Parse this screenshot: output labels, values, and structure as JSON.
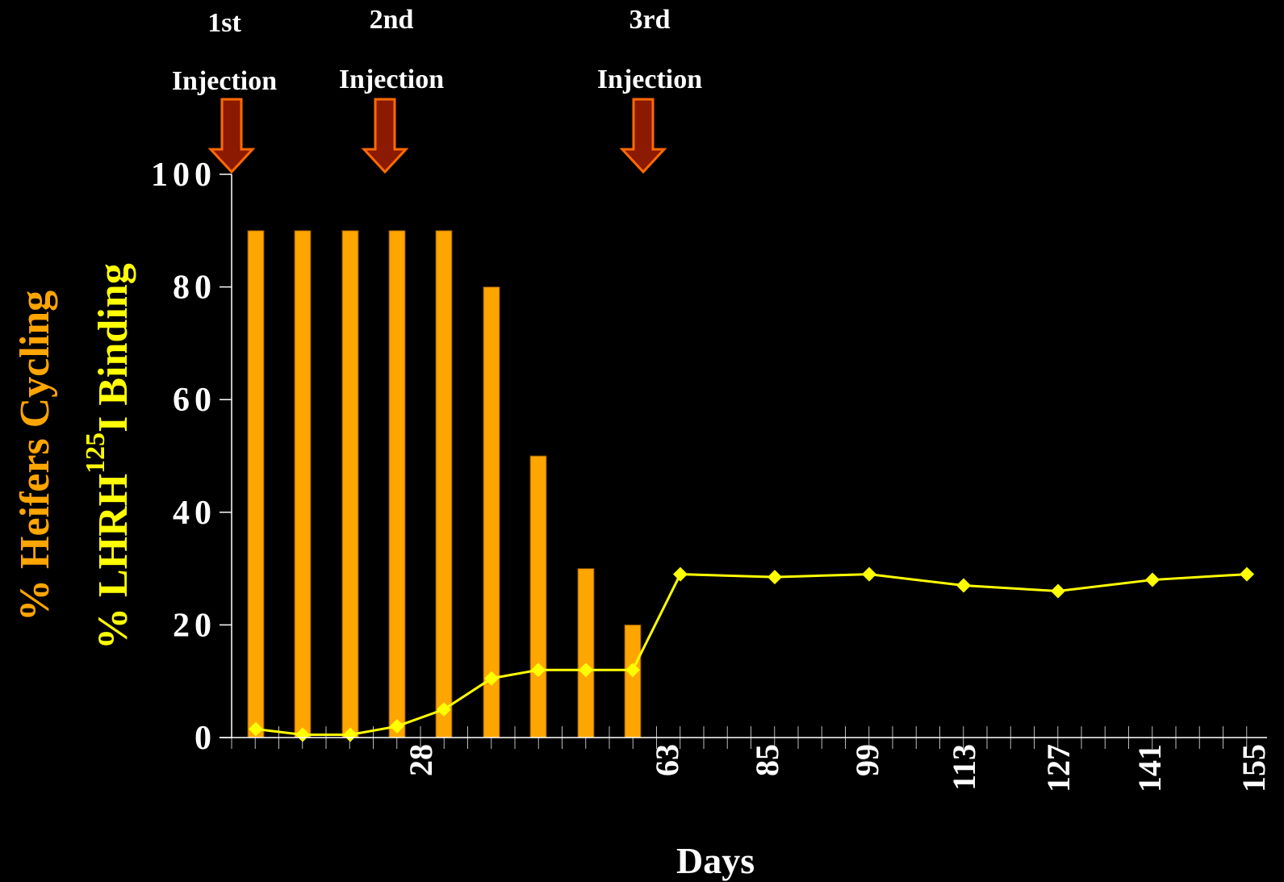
{
  "chart_data": {
    "type": "bar",
    "y_ticks": [
      "0",
      "20",
      "40",
      "60",
      "80",
      "100"
    ],
    "ylim": [
      0,
      100
    ],
    "x_tick_labels": [
      "28",
      "63",
      "85",
      "99",
      "113",
      "127",
      "141",
      "155"
    ],
    "xlabel": "Days",
    "ylabel_orange": "% Heifers Cycling",
    "ylabel_yellow": {
      "main": "% LHRH",
      "superscript": "125",
      "suffix": "I Binding"
    },
    "bars": {
      "name": "% Heifers Cycling",
      "color": "#FFA500",
      "days": [
        7,
        14,
        21,
        28,
        35,
        42,
        49,
        56,
        63
      ],
      "values": [
        90,
        90,
        90,
        90,
        90,
        80,
        50,
        30,
        20
      ]
    },
    "line": {
      "name": "% LHRH 125I Binding",
      "color": "#FFFF00",
      "days": [
        7,
        14,
        21,
        28,
        35,
        42,
        49,
        56,
        63,
        70,
        85,
        99,
        113,
        127,
        141,
        155
      ],
      "values": [
        1.5,
        0.5,
        0.5,
        2,
        5,
        10.5,
        12,
        12,
        12,
        29,
        28.5,
        29,
        27,
        26,
        28,
        29
      ]
    },
    "injections": [
      {
        "top": "1st",
        "bottom": "Injection",
        "day": 0
      },
      {
        "top": "2nd",
        "bottom": "Injection",
        "day": 28
      },
      {
        "top": "3rd",
        "bottom": "Injection",
        "day": 63
      }
    ],
    "colors": {
      "background": "#000000",
      "axis": "#ffffff",
      "arrow_fill": "#8B1A00",
      "arrow_stroke": "#FF6A00"
    }
  }
}
